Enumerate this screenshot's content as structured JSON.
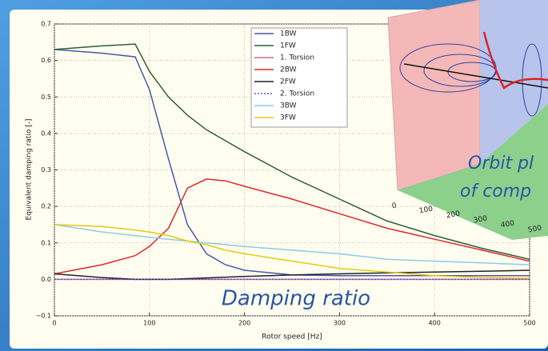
{
  "chart_data": {
    "type": "line",
    "xlabel": "Rotor speed [Hz]",
    "ylabel": "Equivalent damping ratio [-]",
    "annotation": "Damping ratio",
    "x": [
      0,
      50,
      85,
      100,
      120,
      140,
      160,
      180,
      200,
      250,
      300,
      350,
      400,
      450,
      500
    ],
    "series": [
      {
        "name": "1BW",
        "color": "#4a58a8",
        "values": [
          0.63,
          0.62,
          0.61,
          0.52,
          0.33,
          0.15,
          0.07,
          0.04,
          0.025,
          0.012,
          0.01,
          0.01,
          0.01,
          0.01,
          0.01
        ]
      },
      {
        "name": "1FW",
        "color": "#2f5e34",
        "values": [
          0.63,
          0.64,
          0.645,
          0.57,
          0.5,
          0.45,
          0.41,
          0.38,
          0.35,
          0.28,
          0.22,
          0.16,
          0.12,
          0.085,
          0.055
        ]
      },
      {
        "name": "1. Torsion",
        "color": "#cc6699",
        "values": [
          0,
          0,
          0,
          0,
          0,
          0,
          0,
          0,
          0,
          0,
          0,
          0,
          0,
          0,
          0
        ]
      },
      {
        "name": "2BW",
        "color": "#dd2a2a",
        "values": [
          0.015,
          0.04,
          0.065,
          0.09,
          0.14,
          0.25,
          0.275,
          0.27,
          0.255,
          0.22,
          0.18,
          0.14,
          0.11,
          0.08,
          0.05
        ]
      },
      {
        "name": "2FW",
        "color": "#222222",
        "values": [
          0.015,
          0.005,
          0,
          0,
          0,
          0.002,
          0.004,
          0.006,
          0.008,
          0.012,
          0.015,
          0.018,
          0.02,
          0.022,
          0.025
        ]
      },
      {
        "name": "2. Torsion",
        "color": "#5555cc",
        "dash": "dotted",
        "values": [
          0,
          0,
          0,
          0,
          0,
          0,
          0,
          0,
          0,
          0,
          0,
          0,
          0,
          0,
          0
        ]
      },
      {
        "name": "3BW",
        "color": "#8ccbea",
        "values": [
          0.15,
          0.13,
          0.12,
          0.115,
          0.11,
          0.105,
          0.1,
          0.095,
          0.09,
          0.08,
          0.07,
          0.055,
          0.05,
          0.045,
          0.04
        ]
      },
      {
        "name": "3FW",
        "color": "#e2cc10",
        "values": [
          0.15,
          0.145,
          0.135,
          0.13,
          0.12,
          0.105,
          0.095,
          0.08,
          0.07,
          0.05,
          0.03,
          0.02,
          0.01,
          0.005,
          0.003
        ]
      }
    ],
    "xlim": [
      0,
      500
    ],
    "xticks": [
      0,
      100,
      200,
      300,
      400,
      500
    ],
    "ylim": [
      -0.1,
      0.7
    ],
    "yticks": [
      {
        "value": -0.1,
        "label": "−0.1"
      },
      {
        "value": 0,
        "label": "0.0"
      },
      0.1,
      0.2,
      0.3,
      0.4,
      0.5,
      0.6,
      0.7
    ],
    "grid": true,
    "legend": "top"
  },
  "inset": {
    "texts": [
      "Orbit pl",
      "of comp"
    ],
    "ticks": [
      0,
      100,
      200,
      300,
      400,
      500
    ]
  }
}
